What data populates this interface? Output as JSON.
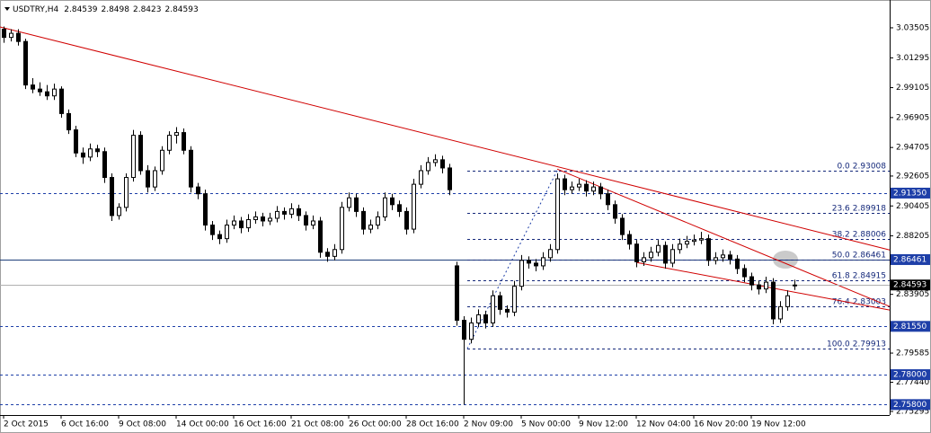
{
  "chart_data": {
    "type": "candlestick",
    "symbol": "USDTRY,H4",
    "ylim": [
      2.7503,
      3.0555
    ],
    "yticks": [
      3.03505,
      3.01295,
      2.99105,
      2.96905,
      2.94705,
      2.92605,
      2.90405,
      2.88205,
      2.83905,
      2.79585,
      {
        "value": 2.7744,
        "label": "2.77440"
      },
      2.75295
    ],
    "xlabels": [
      "2 Oct 2015",
      "6 Oct 16:00",
      "9 Oct 08:00",
      "14 Oct 00:00",
      "16 Oct 16:00",
      "21 Oct 08:00",
      "26 Oct 00:00",
      "28 Oct 16:00",
      "2 Nov 09:00",
      "5 Nov 00:00",
      "9 Nov 12:00",
      "12 Nov 04:00",
      "16 Nov 20:00",
      "19 Nov 12:00"
    ],
    "bull_color": "#ffffff",
    "bear_color": "#000000",
    "candles": [
      [
        3.034,
        3.036,
        3.024,
        3.028
      ],
      [
        3.028,
        3.034,
        3.025,
        3.031
      ],
      [
        3.031,
        3.034,
        3.022,
        3.025
      ],
      [
        3.025,
        3.027,
        2.99,
        2.993
      ],
      [
        2.993,
        2.998,
        2.987,
        2.99
      ],
      [
        2.99,
        2.995,
        2.985,
        2.988
      ],
      [
        2.988,
        2.993,
        2.982,
        2.985
      ],
      [
        2.985,
        2.994,
        2.982,
        2.99
      ],
      [
        2.99,
        2.992,
        2.969,
        2.972
      ],
      [
        2.972,
        2.975,
        2.957,
        2.96
      ],
      [
        2.96,
        2.963,
        2.94,
        2.943
      ],
      [
        2.943,
        2.947,
        2.935,
        2.94
      ],
      [
        2.94,
        2.95,
        2.937,
        2.946
      ],
      [
        2.946,
        2.949,
        2.94,
        2.944
      ],
      [
        2.944,
        2.947,
        2.921,
        2.925
      ],
      [
        2.925,
        2.928,
        2.893,
        2.897
      ],
      [
        2.897,
        2.906,
        2.894,
        2.903
      ],
      [
        2.903,
        2.928,
        2.9,
        2.925
      ],
      [
        2.925,
        2.96,
        2.922,
        2.956
      ],
      [
        2.956,
        2.959,
        2.927,
        2.93
      ],
      [
        2.93,
        2.934,
        2.914,
        2.918
      ],
      [
        2.918,
        2.933,
        2.915,
        2.93
      ],
      [
        2.93,
        2.948,
        2.927,
        2.945
      ],
      [
        2.945,
        2.959,
        2.942,
        2.956
      ],
      [
        2.956,
        2.962,
        2.95,
        2.958
      ],
      [
        2.958,
        2.961,
        2.942,
        2.945
      ],
      [
        2.945,
        2.948,
        2.914,
        2.918
      ],
      [
        2.918,
        2.921,
        2.909,
        2.913
      ],
      [
        2.913,
        2.916,
        2.886,
        2.89
      ],
      [
        2.89,
        2.893,
        2.879,
        2.883
      ],
      [
        2.883,
        2.886,
        2.876,
        2.88
      ],
      [
        2.88,
        2.894,
        2.877,
        2.89
      ],
      [
        2.89,
        2.897,
        2.887,
        2.893
      ],
      [
        2.893,
        2.896,
        2.884,
        2.888
      ],
      [
        2.888,
        2.898,
        2.885,
        2.894
      ],
      [
        2.894,
        2.9,
        2.891,
        2.896
      ],
      [
        2.896,
        2.899,
        2.889,
        2.893
      ],
      [
        2.893,
        2.899,
        2.89,
        2.895
      ],
      [
        2.895,
        2.904,
        2.892,
        2.9
      ],
      [
        2.9,
        2.903,
        2.894,
        2.898
      ],
      [
        2.898,
        2.906,
        2.895,
        2.902
      ],
      [
        2.902,
        2.905,
        2.893,
        2.897
      ],
      [
        2.897,
        2.9,
        2.886,
        2.89
      ],
      [
        2.89,
        2.897,
        2.887,
        2.893
      ],
      [
        2.893,
        2.896,
        2.866,
        2.87
      ],
      [
        2.87,
        2.873,
        2.863,
        2.867
      ],
      [
        2.867,
        2.876,
        2.864,
        2.872
      ],
      [
        2.872,
        2.907,
        2.869,
        2.903
      ],
      [
        2.903,
        2.914,
        2.9,
        2.91
      ],
      [
        2.91,
        2.913,
        2.896,
        2.9
      ],
      [
        2.9,
        2.903,
        2.883,
        2.887
      ],
      [
        2.887,
        2.894,
        2.884,
        2.89
      ],
      [
        2.89,
        2.9,
        2.887,
        2.896
      ],
      [
        2.896,
        2.914,
        2.893,
        2.91
      ],
      [
        2.91,
        2.913,
        2.901,
        2.905
      ],
      [
        2.905,
        2.908,
        2.896,
        2.9
      ],
      [
        2.9,
        2.903,
        2.883,
        2.887
      ],
      [
        2.887,
        2.924,
        2.884,
        2.92
      ],
      [
        2.92,
        2.934,
        2.917,
        2.93
      ],
      [
        2.93,
        2.94,
        2.927,
        2.936
      ],
      [
        2.936,
        2.942,
        2.933,
        2.938
      ],
      [
        2.938,
        2.941,
        2.928,
        2.932
      ],
      [
        2.932,
        2.935,
        2.912,
        2.916
      ],
      [
        2.86,
        2.863,
        2.816,
        2.82
      ],
      [
        2.82,
        2.823,
        2.758,
        2.806
      ],
      [
        2.806,
        2.822,
        2.803,
        2.818
      ],
      [
        2.818,
        2.828,
        2.815,
        2.824
      ],
      [
        2.824,
        2.827,
        2.814,
        2.818
      ],
      [
        2.818,
        2.842,
        2.815,
        2.838
      ],
      [
        2.838,
        2.841,
        2.824,
        2.828
      ],
      [
        2.828,
        2.831,
        2.822,
        2.826
      ],
      [
        2.826,
        2.849,
        2.823,
        2.845
      ],
      [
        2.845,
        2.868,
        2.842,
        2.864
      ],
      [
        2.864,
        2.867,
        2.858,
        2.862
      ],
      [
        2.862,
        2.865,
        2.856,
        2.86
      ],
      [
        2.86,
        2.87,
        2.857,
        2.866
      ],
      [
        2.866,
        2.876,
        2.863,
        2.872
      ],
      [
        2.872,
        2.928,
        2.869,
        2.924
      ],
      [
        2.924,
        2.927,
        2.912,
        2.916
      ],
      [
        2.916,
        2.922,
        2.913,
        2.918
      ],
      [
        2.918,
        2.924,
        2.915,
        2.92
      ],
      [
        2.92,
        2.923,
        2.911,
        2.915
      ],
      [
        2.915,
        2.922,
        2.912,
        2.918
      ],
      [
        2.918,
        2.921,
        2.909,
        2.913
      ],
      [
        2.913,
        2.916,
        2.901,
        2.905
      ],
      [
        2.905,
        2.908,
        2.891,
        2.895
      ],
      [
        2.895,
        2.898,
        2.879,
        2.883
      ],
      [
        2.883,
        2.886,
        2.872,
        2.876
      ],
      [
        2.876,
        2.879,
        2.859,
        2.863
      ],
      [
        2.863,
        2.87,
        2.86,
        2.866
      ],
      [
        2.866,
        2.874,
        2.863,
        2.87
      ],
      [
        2.87,
        2.879,
        2.867,
        2.875
      ],
      [
        2.875,
        2.878,
        2.858,
        2.862
      ],
      [
        2.862,
        2.876,
        2.859,
        2.872
      ],
      [
        2.872,
        2.88,
        2.869,
        2.876
      ],
      [
        2.876,
        2.882,
        2.873,
        2.878
      ],
      [
        2.878,
        2.883,
        2.875,
        2.879
      ],
      [
        2.879,
        2.885,
        2.876,
        2.88
      ],
      [
        2.88,
        2.883,
        2.86,
        2.864
      ],
      [
        2.864,
        2.87,
        2.861,
        2.866
      ],
      [
        2.866,
        2.872,
        2.863,
        2.868
      ],
      [
        2.868,
        2.871,
        2.861,
        2.865
      ],
      [
        2.865,
        2.868,
        2.854,
        2.858
      ],
      [
        2.858,
        2.861,
        2.848,
        2.852
      ],
      [
        2.852,
        2.855,
        2.842,
        2.846
      ],
      [
        2.846,
        2.849,
        2.839,
        2.843
      ],
      [
        2.843,
        2.852,
        2.84,
        2.848
      ],
      [
        2.848,
        2.851,
        2.817,
        2.821
      ],
      [
        2.821,
        2.834,
        2.818,
        2.83
      ],
      [
        2.83,
        2.842,
        2.827,
        2.838
      ],
      [
        2.84539,
        2.8498,
        2.8423,
        2.84593
      ]
    ],
    "hlines": [
      {
        "price": {
          "value": 2.9135,
          "label": "2.91350"
        },
        "style": "dashed"
      },
      {
        "price": 2.86461,
        "style": "solid"
      },
      {
        "price": {
          "value": 2.8155,
          "label": "2.81550"
        },
        "style": "dashed"
      },
      {
        "price": {
          "value": 2.78,
          "label": "2.78000"
        },
        "style": "dashed"
      },
      {
        "price": {
          "value": 2.758,
          "label": "2.75800"
        },
        "style": "dashed"
      }
    ],
    "trendlines": [
      {
        "from": [
          -0.5,
          3.0357
        ],
        "to": [
          123.25,
          2.8717
        ]
      },
      {
        "from": [
          77,
          2.9312
        ],
        "to": [
          123.25,
          2.8301
        ]
      },
      {
        "from": [
          88,
          2.8625
        ],
        "to": [
          123.25,
          2.8275
        ]
      }
    ],
    "fibo": {
      "from": [
        64.5,
        2.79913
      ],
      "to": [
        77,
        2.93008
      ],
      "levels": [
        {
          "label": "0.0",
          "price": 2.93008
        },
        {
          "label": "23.6",
          "price": 2.89918
        },
        {
          "label": "38.2",
          "price": 2.88006
        },
        {
          "label": "50.0",
          "price": 2.86461
        },
        {
          "label": "61.8",
          "price": 2.84915
        },
        {
          "label": "76.4",
          "price": 2.83003
        },
        {
          "label": "100.0",
          "price": 2.79913
        }
      ]
    }
  }
}
